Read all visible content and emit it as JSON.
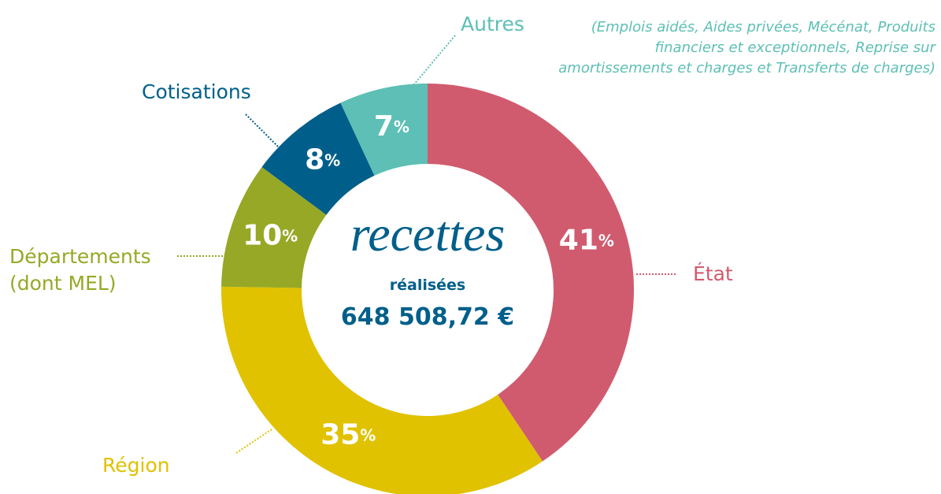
{
  "chart_data": {
    "type": "donut",
    "title": "recettes",
    "subtitle": "réalisées",
    "total": "648 508,72 €",
    "categories": [
      "État",
      "Région",
      "Départements (dont MEL)",
      "Cotisations",
      "Autres"
    ],
    "values": [
      41,
      35,
      10,
      8,
      7
    ],
    "value_labels": [
      "41%",
      "35%",
      "10%",
      "8%",
      "7%"
    ],
    "colors": [
      "#d15b6e",
      "#e0c200",
      "#97a826",
      "#005f8a",
      "#5dbfb5"
    ],
    "annotation": "(Emplois aidés, Aides privées, Mécénat, Produits financiers et exceptionnels, Reprise sur amortissements et charges et Transferts de charges)"
  }
}
